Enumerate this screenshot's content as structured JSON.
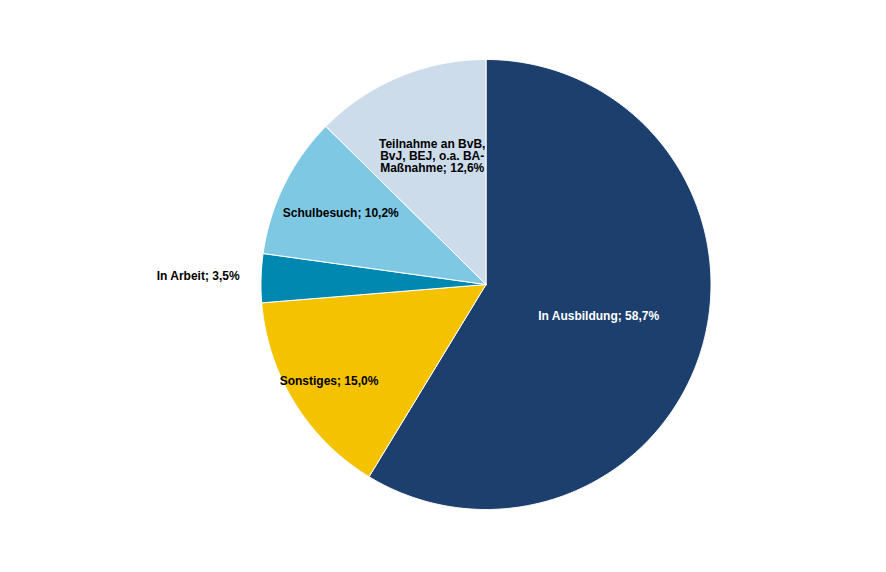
{
  "chart_data": {
    "type": "pie",
    "values": [
      58.7,
      15.0,
      3.5,
      10.2,
      12.6
    ],
    "value_labels": [
      "In Ausbildung; 58,7%",
      "Sonstiges; 15,0%",
      "In Arbeit; 3,5%",
      "Schulbesuch; 10,2%",
      "Teilnahme an BvB,\nBvJ, BEJ, o.a. BA-\nMaßnahme; 12,6%"
    ],
    "colors": [
      "#1c3f6e",
      "#f5c200",
      "#0088b0",
      "#7ec8e3",
      "#cddcea"
    ],
    "data_labels": true
  }
}
